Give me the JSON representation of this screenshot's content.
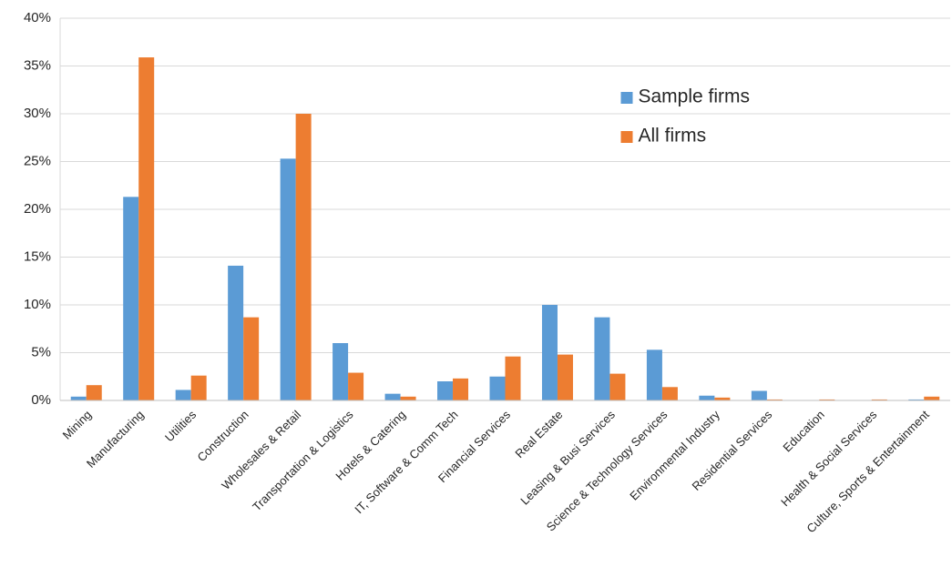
{
  "chart_data": {
    "type": "bar",
    "categories": [
      "Mining",
      "Manufacturing",
      "Utilities",
      "Construction",
      "Wholesales & Retail",
      "Transportation & Logistics",
      "Hotels & Catering",
      "IT, Software & Comm Tech",
      "Financial Services",
      "Real Estate",
      "Leasing & Busi Services",
      "Science & Technology Services",
      "Environmental Industry",
      "Residential Services",
      "Education",
      "Health & Social Services",
      "Culture, Sports & Entertainment"
    ],
    "series": [
      {
        "name": "Sample firms",
        "color": "#5b9bd5",
        "values": [
          0.4,
          21.3,
          1.1,
          14.1,
          25.3,
          6.0,
          0.7,
          2.0,
          2.5,
          10.0,
          8.7,
          5.3,
          0.5,
          1.0,
          0,
          0,
          0.1
        ]
      },
      {
        "name": "All firms",
        "color": "#ed7d31",
        "values": [
          1.6,
          35.9,
          2.6,
          8.7,
          30.0,
          2.9,
          0.4,
          2.3,
          4.6,
          4.8,
          2.8,
          1.4,
          0.3,
          0.1,
          0.1,
          0.1,
          0.4
        ]
      }
    ],
    "ylim": [
      0,
      40
    ],
    "yticks": [
      {
        "value": 0,
        "label": "0%"
      },
      {
        "value": 5,
        "label": "5%"
      },
      {
        "value": 10,
        "label": "10%"
      },
      {
        "value": 15,
        "label": "15%"
      },
      {
        "value": 20,
        "label": "20%"
      },
      {
        "value": 25,
        "label": "25%"
      },
      {
        "value": 30,
        "label": "30%"
      },
      {
        "value": 35,
        "label": "35%"
      },
      {
        "value": 40,
        "label": "40%"
      }
    ],
    "grid": true,
    "legend": "upper-right"
  }
}
